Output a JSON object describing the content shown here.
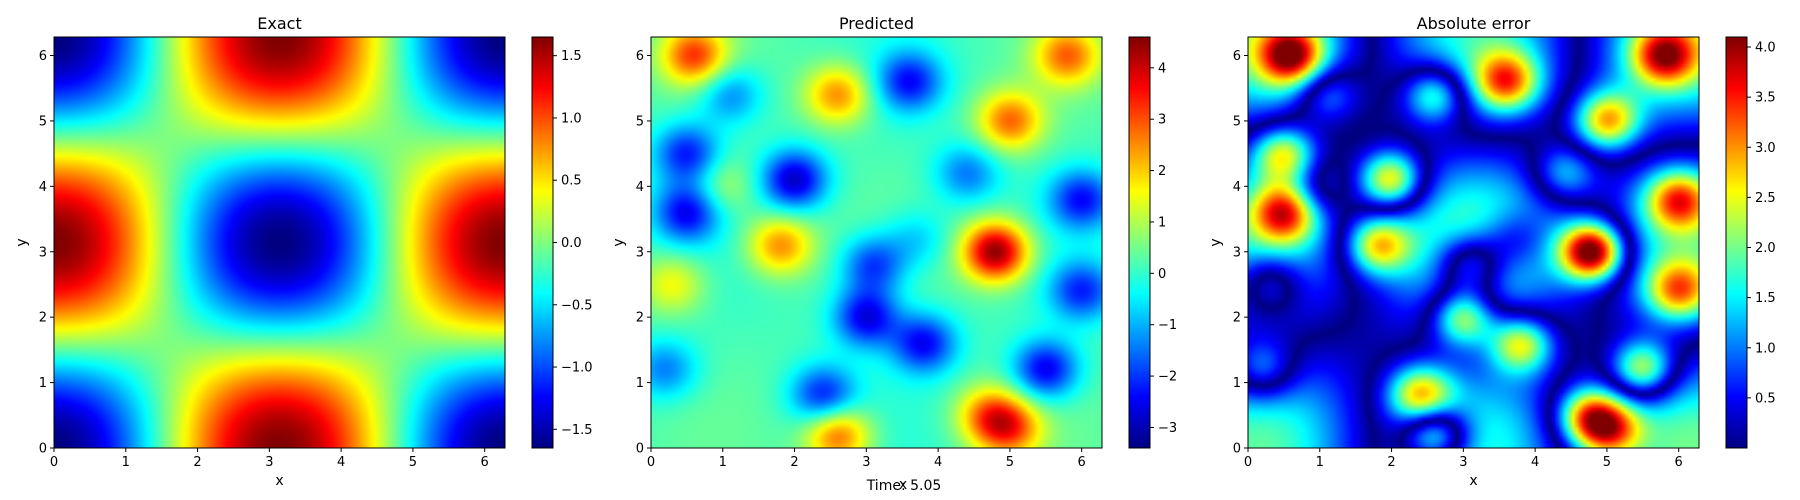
{
  "chart_data": [
    {
      "type": "heatmap",
      "title": "Exact",
      "xlabel": "x",
      "ylabel": "y",
      "xlim": [
        0,
        6.283
      ],
      "ylim": [
        0,
        6.283
      ],
      "x_ticks": [
        "0",
        "1",
        "2",
        "3",
        "4",
        "5",
        "6"
      ],
      "y_ticks": [
        "0",
        "1",
        "2",
        "3",
        "4",
        "5",
        "6"
      ],
      "colormap": "jet",
      "colorbar_range": [
        -1.65,
        1.65
      ],
      "colorbar_ticks": [
        "−1.5",
        "−1.0",
        "−0.5",
        "0.0",
        "0.5",
        "1.0",
        "1.5"
      ],
      "colorbar_tick_values": [
        -1.5,
        -1.0,
        -0.5,
        0.0,
        0.5,
        1.0,
        1.5
      ],
      "field": "cos(x) - cos(y) pattern: maxima at (0,π),(2π,π),(π,0),(π,2π); minima at (π,π) and corners"
    },
    {
      "type": "heatmap",
      "title": "Predicted",
      "xlabel": "x",
      "ylabel": "y",
      "xlim": [
        0,
        6.283
      ],
      "ylim": [
        0,
        6.283
      ],
      "x_ticks": [
        "0",
        "1",
        "2",
        "3",
        "4",
        "5",
        "6"
      ],
      "y_ticks": [
        "0",
        "1",
        "2",
        "3",
        "4",
        "5",
        "6"
      ],
      "colormap": "jet",
      "colorbar_range": [
        -3.4,
        4.6
      ],
      "colorbar_ticks": [
        "−3",
        "−2",
        "−1",
        "0",
        "1",
        "2",
        "3",
        "4"
      ],
      "colorbar_tick_values": [
        -3,
        -2,
        -1,
        0,
        1,
        2,
        3,
        4
      ],
      "hotspots": [
        {
          "x": 4.8,
          "y": 3.0,
          "v": 4.4
        },
        {
          "x": 0.6,
          "y": 6.0,
          "v": 2.9
        },
        {
          "x": 5.8,
          "y": 6.0,
          "v": 2.5
        },
        {
          "x": 5.0,
          "y": 5.0,
          "v": 2.6
        },
        {
          "x": 2.6,
          "y": 5.4,
          "v": 2.4
        },
        {
          "x": 1.8,
          "y": 3.1,
          "v": 2.4
        },
        {
          "x": 2.6,
          "y": 0.2,
          "v": 2.8
        },
        {
          "x": 5.0,
          "y": 0.3,
          "v": 2.5
        },
        {
          "x": 4.7,
          "y": 0.5,
          "v": 2.2
        },
        {
          "x": 0.3,
          "y": 2.5,
          "v": 1.5
        },
        {
          "x": 1.0,
          "y": 4.0,
          "v": 1.0
        },
        {
          "x": 0.5,
          "y": 4.5,
          "v": -2.4
        },
        {
          "x": 0.5,
          "y": 3.6,
          "v": -2.6
        },
        {
          "x": 2.0,
          "y": 4.1,
          "v": -3.0
        },
        {
          "x": 3.1,
          "y": 2.8,
          "v": -2.2
        },
        {
          "x": 3.0,
          "y": 2.0,
          "v": -2.8
        },
        {
          "x": 3.8,
          "y": 1.6,
          "v": -2.6
        },
        {
          "x": 3.6,
          "y": 5.6,
          "v": -2.4
        },
        {
          "x": 6.0,
          "y": 3.8,
          "v": -2.4
        },
        {
          "x": 6.0,
          "y": 2.4,
          "v": -2.2
        },
        {
          "x": 5.5,
          "y": 1.2,
          "v": -2.8
        },
        {
          "x": 2.4,
          "y": 0.8,
          "v": -2.4
        },
        {
          "x": 1.1,
          "y": 5.4,
          "v": -1.6
        },
        {
          "x": 4.4,
          "y": 4.2,
          "v": -1.6
        },
        {
          "x": 0.2,
          "y": 1.2,
          "v": -1.6
        },
        {
          "x": 3.7,
          "y": 3.2,
          "v": -1.0
        }
      ]
    },
    {
      "type": "heatmap",
      "title": "Absolute error",
      "xlabel": "x",
      "ylabel": "y",
      "xlim": [
        0,
        6.283
      ],
      "ylim": [
        0,
        6.283
      ],
      "x_ticks": [
        "0",
        "1",
        "2",
        "3",
        "4",
        "5",
        "6"
      ],
      "y_ticks": [
        "0",
        "1",
        "2",
        "3",
        "4",
        "5",
        "6"
      ],
      "colormap": "jet",
      "colorbar_range": [
        0,
        4.1
      ],
      "colorbar_ticks": [
        "0.5",
        "1.0",
        "1.5",
        "2.0",
        "2.5",
        "3.0",
        "3.5",
        "4.0"
      ],
      "colorbar_tick_values": [
        0.5,
        1.0,
        1.5,
        2.0,
        2.5,
        3.0,
        3.5,
        4.0
      ],
      "field": "|Predicted − Exact|"
    }
  ],
  "footer": {
    "xlabel_overlap": "x",
    "time_label": "Time: 5.05"
  }
}
